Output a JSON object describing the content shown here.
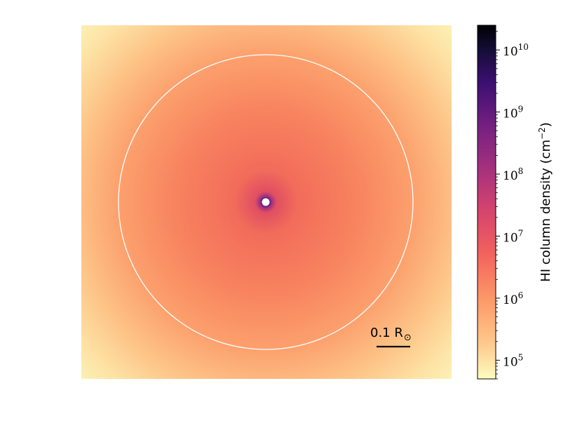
{
  "chart_data": {
    "type": "heatmap",
    "colormap": "magma_r",
    "scale": "log",
    "colorbar": {
      "label_prefix": "HI column density (cm",
      "label_exp": "−2",
      "label_suffix": ")",
      "range": [
        50000,
        25000000000
      ],
      "major_ticks": [
        {
          "value": 100000,
          "base": "10",
          "exp": "5"
        },
        {
          "value": 1000000,
          "base": "10",
          "exp": "6"
        },
        {
          "value": 10000000,
          "base": "10",
          "exp": "7"
        },
        {
          "value": 100000000,
          "base": "10",
          "exp": "8"
        },
        {
          "value": 1000000000,
          "base": "10",
          "exp": "9"
        },
        {
          "value": 10000000000,
          "base": "10",
          "exp": "10"
        }
      ]
    },
    "scale_bar": {
      "label": "0.1 R",
      "symbol": "⊙"
    },
    "reference_circle_color": "#ffffff",
    "central_marker_color": "#ffffff",
    "colors": {
      "c0": "#fcfdbf",
      "c1": "#feca8d",
      "c2": "#fd9668",
      "c3": "#f1605d",
      "c4": "#cd4071",
      "c5": "#9e2f7f",
      "c6": "#721f81",
      "c7": "#440f76",
      "c8": "#180f3d",
      "c9": "#000004"
    }
  }
}
